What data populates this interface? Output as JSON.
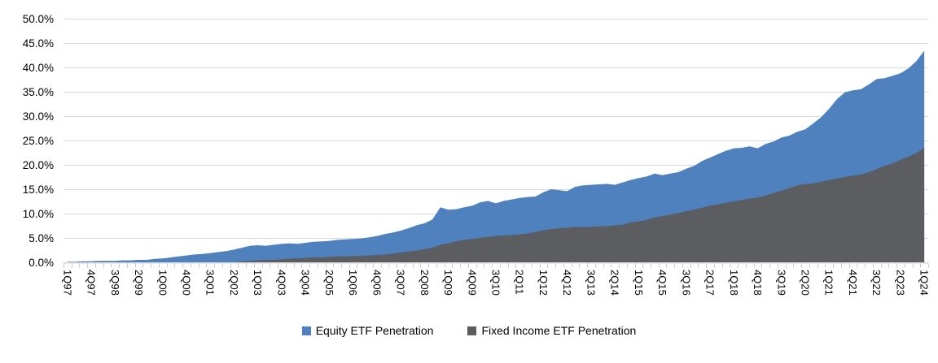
{
  "chart_data": {
    "type": "area",
    "title": "",
    "xlabel": "",
    "ylabel": "",
    "grid": "horizontal",
    "legend_position": "bottom",
    "stacked": false,
    "x": [
      "1Q97",
      "2Q97",
      "3Q97",
      "4Q97",
      "1Q98",
      "2Q98",
      "3Q98",
      "4Q98",
      "1Q99",
      "2Q99",
      "3Q99",
      "4Q99",
      "1Q00",
      "2Q00",
      "3Q00",
      "4Q00",
      "1Q01",
      "2Q01",
      "3Q01",
      "4Q01",
      "1Q02",
      "2Q02",
      "3Q02",
      "4Q02",
      "1Q03",
      "2Q03",
      "3Q03",
      "4Q03",
      "1Q04",
      "2Q04",
      "3Q04",
      "4Q04",
      "1Q05",
      "2Q05",
      "3Q05",
      "4Q05",
      "1Q06",
      "2Q06",
      "3Q06",
      "4Q06",
      "1Q07",
      "2Q07",
      "3Q07",
      "4Q07",
      "1Q08",
      "2Q08",
      "3Q08",
      "4Q08",
      "1Q09",
      "2Q09",
      "3Q09",
      "4Q09",
      "1Q10",
      "2Q10",
      "3Q10",
      "4Q10",
      "1Q11",
      "2Q11",
      "3Q11",
      "4Q11",
      "1Q12",
      "2Q12",
      "3Q12",
      "4Q12",
      "1Q13",
      "2Q13",
      "3Q13",
      "4Q13",
      "1Q14",
      "2Q14",
      "3Q14",
      "4Q14",
      "1Q15",
      "2Q15",
      "3Q15",
      "4Q15",
      "1Q16",
      "2Q16",
      "3Q16",
      "4Q16",
      "1Q17",
      "2Q17",
      "3Q17",
      "4Q17",
      "1Q18",
      "2Q18",
      "3Q18",
      "4Q18",
      "1Q19",
      "2Q19",
      "3Q19",
      "4Q19",
      "1Q20",
      "2Q20",
      "3Q20",
      "4Q20",
      "1Q21",
      "2Q21",
      "3Q21",
      "4Q21",
      "1Q22",
      "2Q22",
      "3Q22",
      "4Q22",
      "1Q23",
      "2Q23",
      "3Q23",
      "4Q23",
      "1Q24"
    ],
    "x_tick_label_step": 3,
    "series": [
      {
        "name": "Equity ETF Penetration",
        "color": "#4E81BD",
        "values": [
          0.1,
          0.1,
          0.2,
          0.2,
          0.3,
          0.3,
          0.3,
          0.4,
          0.4,
          0.5,
          0.5,
          0.7,
          0.8,
          1.0,
          1.2,
          1.4,
          1.6,
          1.7,
          1.9,
          2.1,
          2.3,
          2.6,
          3.0,
          3.4,
          3.5,
          3.4,
          3.6,
          3.8,
          3.9,
          3.8,
          4.0,
          4.2,
          4.3,
          4.4,
          4.6,
          4.7,
          4.8,
          4.9,
          5.1,
          5.4,
          5.8,
          6.1,
          6.5,
          7.0,
          7.6,
          8.0,
          8.8,
          11.3,
          10.8,
          10.9,
          11.3,
          11.6,
          12.3,
          12.6,
          12.1,
          12.6,
          12.9,
          13.2,
          13.4,
          13.5,
          14.4,
          15.0,
          14.8,
          14.6,
          15.5,
          15.8,
          15.9,
          16.0,
          16.1,
          15.9,
          16.4,
          16.9,
          17.3,
          17.6,
          18.2,
          17.9,
          18.2,
          18.5,
          19.2,
          19.8,
          20.8,
          21.5,
          22.2,
          22.9,
          23.4,
          23.5,
          23.8,
          23.4,
          24.3,
          24.8,
          25.6,
          26.0,
          26.8,
          27.3,
          28.5,
          29.8,
          31.5,
          33.5,
          34.9,
          35.3,
          35.5,
          36.5,
          37.6,
          37.8,
          38.3,
          38.8,
          39.8,
          41.3,
          43.4
        ]
      },
      {
        "name": "Fixed Income ETF Penetration",
        "color": "#5B5D61",
        "values": [
          0,
          0,
          0,
          0,
          0,
          0,
          0,
          0,
          0,
          0,
          0,
          0,
          0,
          0,
          0,
          0,
          0,
          0,
          0,
          0,
          0,
          0,
          0.2,
          0.3,
          0.4,
          0.5,
          0.5,
          0.6,
          0.8,
          0.8,
          0.9,
          1.0,
          1.0,
          1.1,
          1.2,
          1.2,
          1.3,
          1.3,
          1.4,
          1.5,
          1.6,
          1.8,
          2.0,
          2.2,
          2.4,
          2.7,
          3.0,
          3.6,
          3.9,
          4.3,
          4.6,
          4.8,
          5.0,
          5.2,
          5.4,
          5.5,
          5.6,
          5.7,
          5.9,
          6.2,
          6.6,
          6.8,
          7.0,
          7.1,
          7.3,
          7.2,
          7.3,
          7.4,
          7.4,
          7.6,
          7.7,
          8.2,
          8.4,
          8.7,
          9.2,
          9.5,
          9.8,
          10.1,
          10.5,
          10.8,
          11.2,
          11.6,
          11.9,
          12.2,
          12.5,
          12.8,
          13.1,
          13.3,
          13.7,
          14.2,
          14.7,
          15.2,
          15.8,
          16.1,
          16.2,
          16.5,
          16.9,
          17.2,
          17.5,
          17.8,
          18.0,
          18.5,
          19.1,
          19.8,
          20.3,
          21.0,
          21.7,
          22.4,
          23.5
        ]
      }
    ],
    "y_axis": {
      "min": 0,
      "max": 50,
      "step": 5,
      "tick_labels": [
        "0.0%",
        "5.0%",
        "10.0%",
        "15.0%",
        "20.0%",
        "25.0%",
        "30.0%",
        "35.0%",
        "40.0%",
        "45.0%",
        "50.0%"
      ]
    },
    "style": {
      "grid_color": "#D9D9D9",
      "axis_line_color": "#D9D9D9",
      "tick_color": "#C9C9C9",
      "text_color": "#000000"
    }
  }
}
